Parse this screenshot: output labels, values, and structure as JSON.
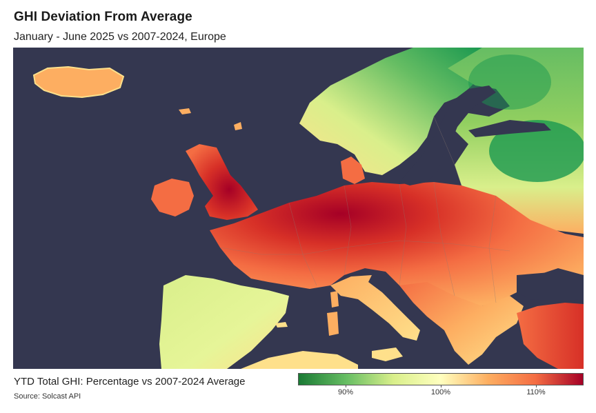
{
  "title": "GHI Deviation From Average",
  "subtitle": "January - June 2025 vs 2007-2024, Europe",
  "legend": {
    "title": "YTD Total GHI: Percentage vs 2007-2024 Average",
    "ticks": [
      "90%",
      "100%",
      "110%"
    ],
    "tick_values": [
      90,
      100,
      110
    ],
    "range": [
      85,
      115
    ],
    "colormap": [
      "#1a7a34",
      "#66bd63",
      "#d9ef8b",
      "#ffffbf",
      "#fdae61",
      "#f46d43",
      "#a50026"
    ]
  },
  "source": "Source: Solcast API",
  "map": {
    "region": "Europe",
    "sea_color": "#343750"
  }
}
